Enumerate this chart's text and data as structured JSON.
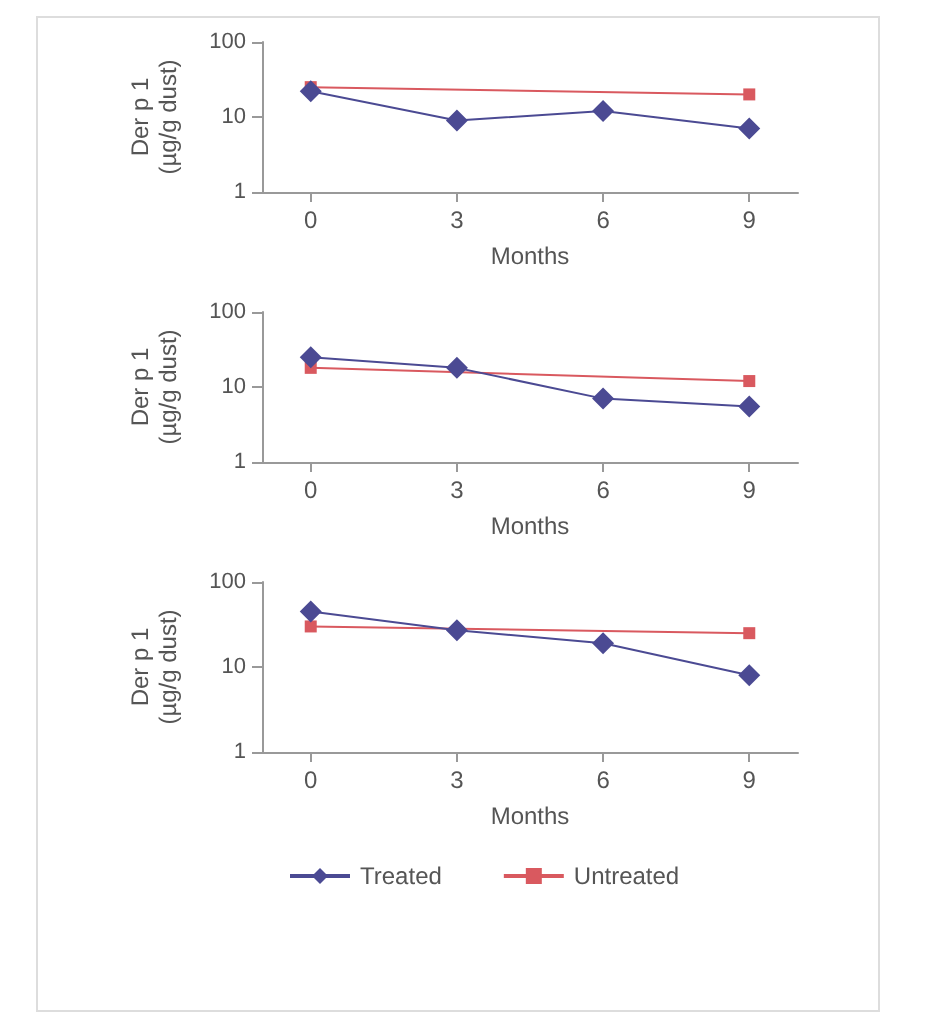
{
  "chart_data": [
    {
      "type": "line",
      "xlabel": "Months",
      "ylabel": "Der p 1\n(µg/g dust)",
      "log": "y",
      "xlim": [
        -1,
        10
      ],
      "xticks": [
        0,
        3,
        6,
        9
      ],
      "ylim": [
        1,
        100
      ],
      "yticks": [
        1,
        10,
        100
      ],
      "grid": false,
      "legend": false,
      "series": [
        {
          "color": "#4b4a93",
          "marker": "diamond",
          "x": [
            0,
            3,
            6,
            9
          ],
          "values": [
            22,
            9,
            12,
            7
          ]
        },
        {
          "color": "#d9595f",
          "marker": "square",
          "x": [
            0,
            9
          ],
          "values": [
            25,
            20
          ]
        }
      ]
    },
    {
      "type": "line",
      "xlabel": "Months",
      "ylabel": "Der p 1\n(µg/g dust)",
      "log": "y",
      "xlim": [
        -1,
        10
      ],
      "xticks": [
        0,
        3,
        6,
        9
      ],
      "ylim": [
        1,
        100
      ],
      "yticks": [
        1,
        10,
        100
      ],
      "grid": false,
      "legend": false,
      "series": [
        {
          "color": "#4b4a93",
          "marker": "diamond",
          "x": [
            0,
            3,
            6,
            9
          ],
          "values": [
            25,
            18,
            7,
            5.5
          ]
        },
        {
          "color": "#d9595f",
          "marker": "square",
          "x": [
            0,
            9
          ],
          "values": [
            18,
            12
          ]
        }
      ]
    },
    {
      "type": "line",
      "xlabel": "Months",
      "ylabel": "Der p 1\n(µg/g dust)",
      "log": "y",
      "xlim": [
        -1,
        10
      ],
      "xticks": [
        0,
        3,
        6,
        9
      ],
      "ylim": [
        1,
        100
      ],
      "yticks": [
        1,
        10,
        100
      ],
      "grid": false,
      "legend": "bottom",
      "series": [
        {
          "name": "Treated",
          "color": "#4b4a93",
          "marker": "diamond",
          "x": [
            0,
            3,
            6,
            9
          ],
          "values": [
            45,
            27,
            19,
            8
          ]
        },
        {
          "name": "Untreated",
          "color": "#d9595f",
          "marker": "square",
          "x": [
            0,
            9
          ],
          "values": [
            30,
            25
          ]
        }
      ]
    }
  ]
}
